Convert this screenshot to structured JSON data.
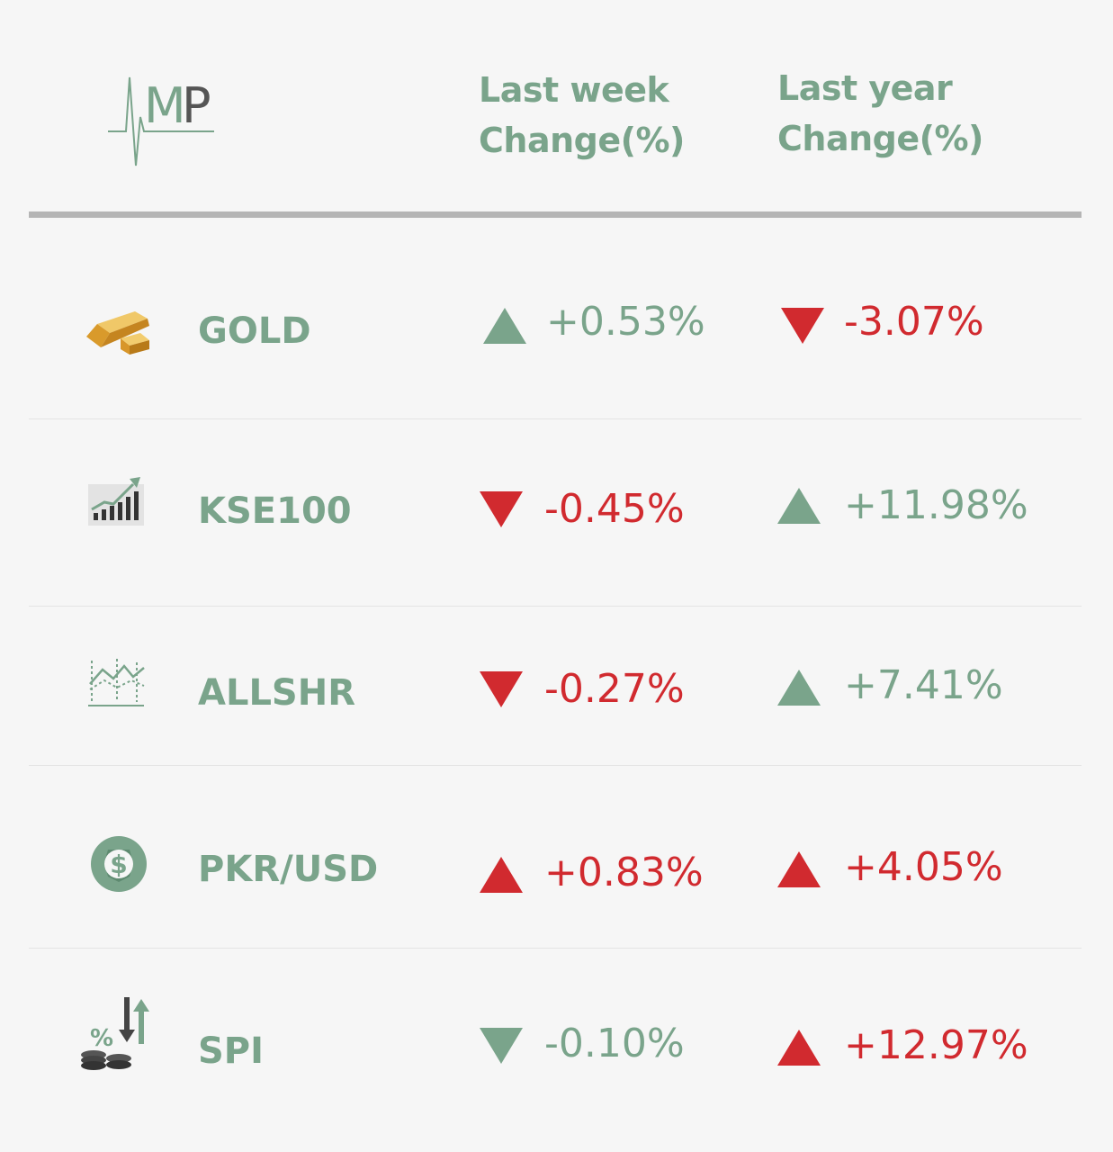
{
  "logo": {
    "text": "MP"
  },
  "headers": {
    "week": [
      "Last week",
      "Change(%)"
    ],
    "year": [
      "Last year",
      "Change(%)"
    ]
  },
  "rows": [
    {
      "name": "GOLD",
      "icon": "gold-bar-icon",
      "week": {
        "value": "+0.53%",
        "direction": "up",
        "color": "#7aa48b"
      },
      "year": {
        "value": "-3.07%",
        "direction": "down",
        "color": "#d12a2f"
      }
    },
    {
      "name": "KSE100",
      "icon": "stock-chart-icon",
      "week": {
        "value": "-0.45%",
        "direction": "down",
        "color": "#d12a2f"
      },
      "year": {
        "value": "+11.98%",
        "direction": "up",
        "color": "#7aa48b"
      }
    },
    {
      "name": "ALLSHR",
      "icon": "line-graph-icon",
      "week": {
        "value": "-0.27%",
        "direction": "down",
        "color": "#d12a2f"
      },
      "year": {
        "value": "+7.41%",
        "direction": "up",
        "color": "#7aa48b"
      }
    },
    {
      "name": "PKR/USD",
      "icon": "dollar-coin-icon",
      "week": {
        "value": "+0.83%",
        "direction": "up",
        "color": "#d12a2f"
      },
      "year": {
        "value": "+4.05%",
        "direction": "up",
        "color": "#d12a2f"
      }
    },
    {
      "name": "SPI",
      "icon": "coins-percent-icon",
      "week": {
        "value": "-0.10%",
        "direction": "down",
        "color": "#7aa48b"
      },
      "year": {
        "value": "+12.97%",
        "direction": "up",
        "color": "#d12a2f"
      }
    }
  ]
}
